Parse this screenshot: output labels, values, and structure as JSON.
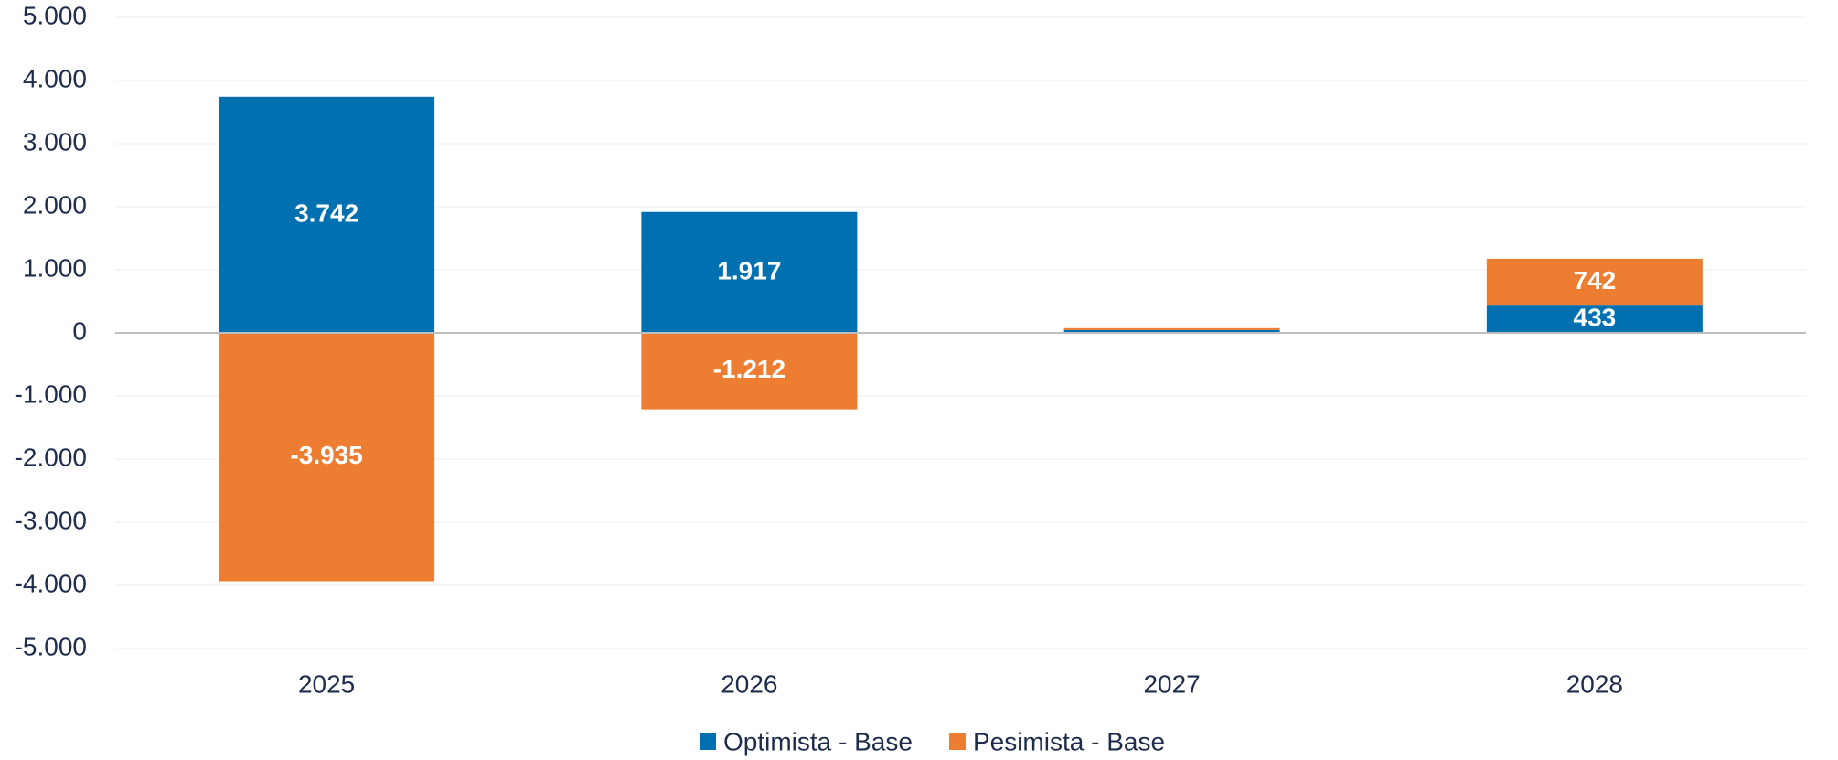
{
  "chart_data": {
    "type": "bar",
    "stacked": true,
    "categories": [
      "2025",
      "2026",
      "2027",
      "2028"
    ],
    "series": [
      {
        "name": "Optimista - Base",
        "color": "#0070b0",
        "values": [
          3742,
          1917,
          45,
          433
        ],
        "value_labels": [
          "3.742",
          "1.917",
          null,
          "433"
        ]
      },
      {
        "name": "Pesimista - Base",
        "color": "#ed7d31",
        "values": [
          -3935,
          -1212,
          30,
          742
        ],
        "value_labels": [
          "-3.935",
          "-1.212",
          null,
          "742"
        ]
      }
    ],
    "ylim": [
      -5000,
      5000
    ],
    "yticks": [
      {
        "value": -5000,
        "label": "-5.000"
      },
      {
        "value": -4000,
        "label": "-4.000"
      },
      {
        "value": -3000,
        "label": "-3.000"
      },
      {
        "value": -2000,
        "label": "-2.000"
      },
      {
        "value": -1000,
        "label": "-1.000"
      },
      0,
      {
        "value": 1000,
        "label": "1.000"
      },
      {
        "value": 2000,
        "label": "2.000"
      },
      {
        "value": 3000,
        "label": "3.000"
      },
      {
        "value": 4000,
        "label": "4.000"
      },
      {
        "value": 5000,
        "label": "5.000"
      }
    ],
    "grid": true,
    "legend": "bottom"
  }
}
